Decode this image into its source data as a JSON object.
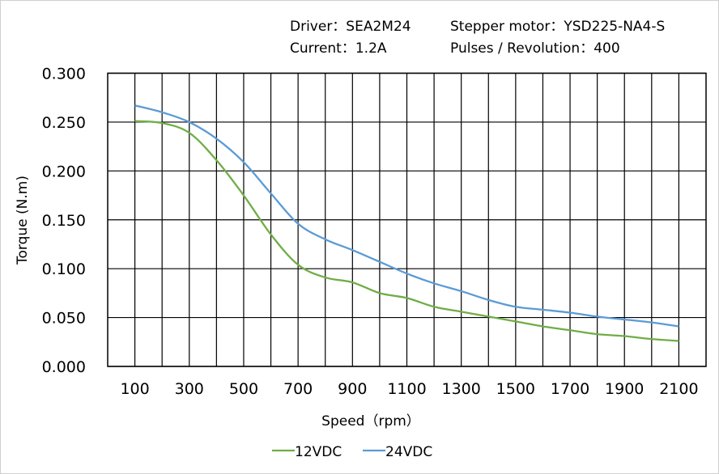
{
  "header": {
    "driver_label": "Driver：SEA2M24",
    "motor_label": "Stepper motor：YSD225-NA4-S",
    "current_label": "Current：1.2A",
    "pulses_label": "Pulses / Revolution：400"
  },
  "chart_data": {
    "type": "line",
    "title": "",
    "xlabel": "Speed（rpm）",
    "ylabel": "Torque (N.m)",
    "xlim": [
      0,
      2200
    ],
    "ylim": [
      0,
      0.3
    ],
    "grid": true,
    "legend": "bottom",
    "x_ticks": [
      "100",
      "300",
      "500",
      "700",
      "900",
      "1100",
      "1300",
      "1500",
      "1700",
      "1900",
      "2100"
    ],
    "y_ticks": [
      "0.000",
      "0.050",
      "0.100",
      "0.150",
      "0.200",
      "0.250",
      "0.300"
    ],
    "x": [
      100,
      200,
      300,
      400,
      500,
      600,
      700,
      800,
      900,
      1000,
      1100,
      1200,
      1300,
      1400,
      1500,
      1600,
      1700,
      1800,
      1900,
      2000,
      2100
    ],
    "series": [
      {
        "name": "12VDC",
        "color": "#70ad47",
        "values": [
          0.251,
          0.249,
          0.239,
          0.211,
          0.175,
          0.135,
          0.104,
          0.091,
          0.086,
          0.075,
          0.07,
          0.061,
          0.056,
          0.051,
          0.046,
          0.041,
          0.037,
          0.033,
          0.031,
          0.028,
          0.026
        ]
      },
      {
        "name": "24VDC",
        "color": "#5b9bd5",
        "values": [
          0.267,
          0.26,
          0.25,
          0.233,
          0.209,
          0.177,
          0.146,
          0.13,
          0.119,
          0.107,
          0.095,
          0.085,
          0.077,
          0.068,
          0.061,
          0.058,
          0.055,
          0.051,
          0.048,
          0.045,
          0.041
        ]
      }
    ]
  }
}
